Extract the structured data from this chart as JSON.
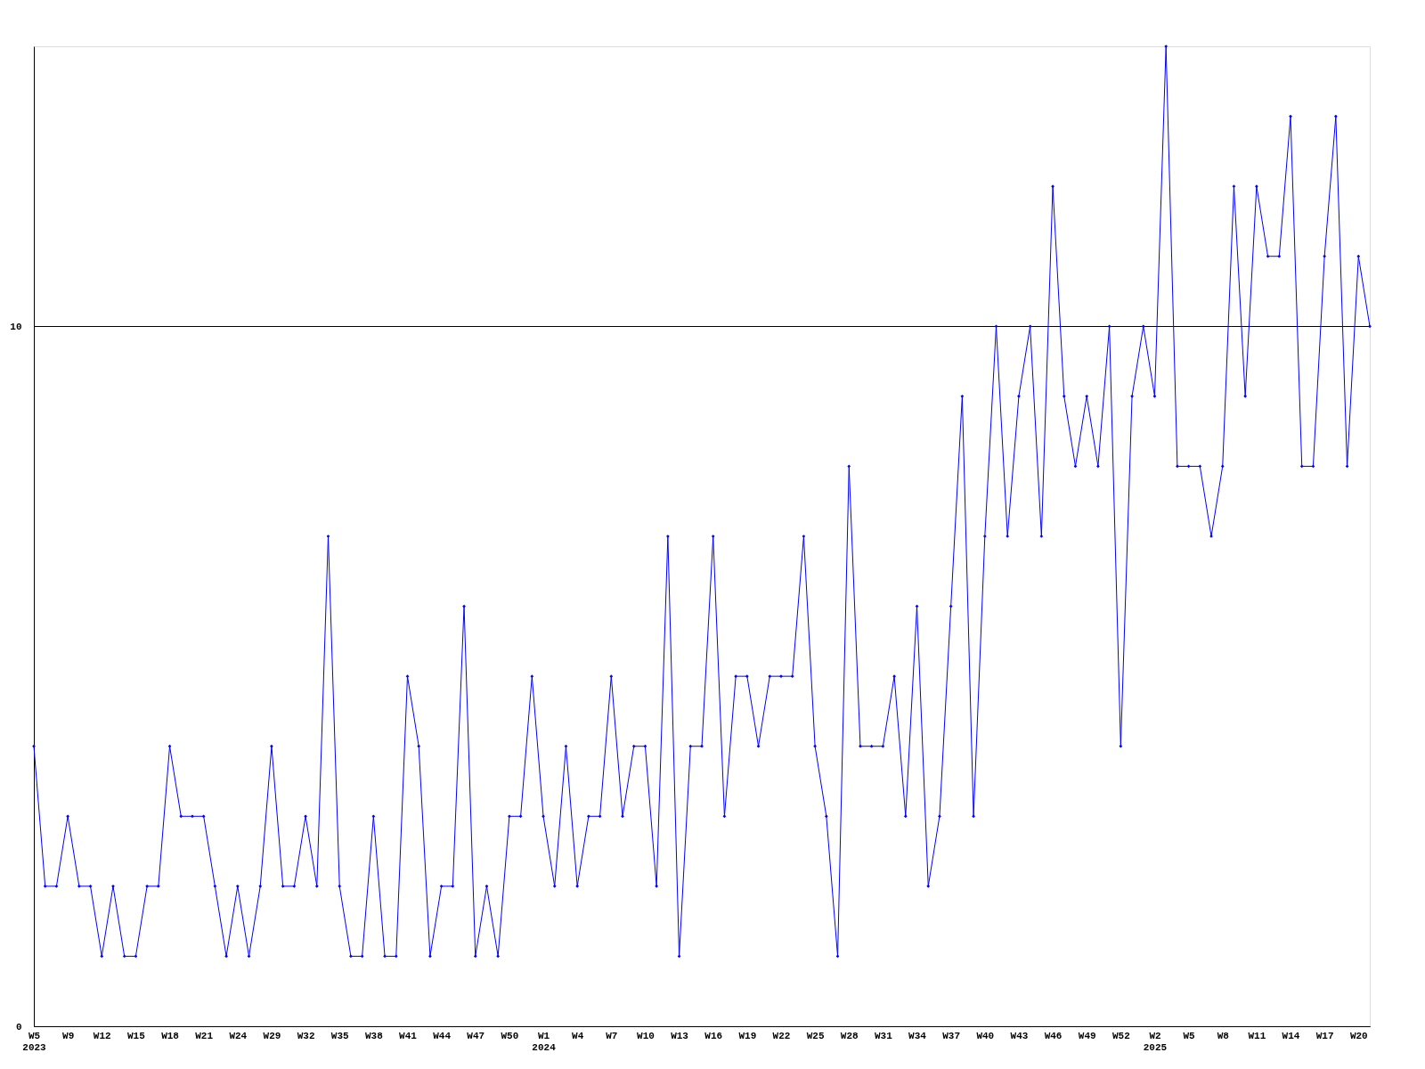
{
  "chart_data": {
    "type": "line",
    "categories": [
      "W5\n2023",
      null,
      null,
      "W9",
      null,
      null,
      "W12",
      null,
      null,
      "W15",
      null,
      null,
      "W18",
      null,
      null,
      "W21",
      null,
      null,
      "W24",
      null,
      null,
      "W29",
      null,
      null,
      "W32",
      null,
      null,
      "W35",
      null,
      null,
      "W38",
      null,
      null,
      "W41",
      null,
      null,
      "W44",
      null,
      null,
      "W47",
      null,
      null,
      "W50",
      null,
      null,
      "W1\n2024",
      null,
      null,
      "W4",
      null,
      null,
      "W7",
      null,
      null,
      "W10",
      null,
      null,
      "W13",
      null,
      null,
      "W16",
      null,
      null,
      "W19",
      null,
      null,
      "W22",
      null,
      null,
      "W25",
      null,
      null,
      "W28",
      null,
      null,
      "W31",
      null,
      null,
      "W34",
      null,
      null,
      "W37",
      null,
      null,
      "W40",
      null,
      null,
      "W43",
      null,
      null,
      "W46",
      null,
      null,
      "W49",
      null,
      null,
      "W52",
      null,
      null,
      "W2\n2025",
      null,
      null,
      "W5",
      null,
      null,
      "W8",
      null,
      null,
      "W11",
      null,
      null,
      "W14",
      null,
      null,
      "W17",
      null,
      null,
      "W20",
      null
    ],
    "series": [
      {
        "color": "#0000ff",
        "values": [
          4,
          2,
          2,
          3,
          2,
          2,
          1,
          2,
          1,
          1,
          2,
          2,
          4,
          3,
          3,
          3,
          2,
          1,
          2,
          1,
          2,
          4,
          2,
          2,
          3,
          2,
          7,
          2,
          1,
          1,
          3,
          1,
          1,
          5,
          4,
          1,
          2,
          2,
          6,
          1,
          2,
          1,
          3,
          3,
          5,
          3,
          2,
          4,
          2,
          3,
          3,
          5,
          3,
          4,
          4,
          2,
          7,
          1,
          4,
          4,
          7,
          3,
          5,
          5,
          4,
          5,
          5,
          5,
          7,
          4,
          3,
          1,
          8,
          4,
          4,
          4,
          5,
          3,
          6,
          2,
          3,
          6,
          9,
          3,
          7,
          10,
          7,
          9,
          10,
          7,
          12,
          9,
          8,
          9,
          8,
          10,
          4,
          9,
          10,
          9,
          14,
          8,
          8,
          8,
          7,
          8,
          12,
          9,
          12,
          11,
          11,
          13,
          8,
          8,
          11,
          13,
          8,
          11,
          10
        ]
      }
    ],
    "ylim": [
      0,
      14
    ],
    "yticks": [
      0,
      10
    ],
    "grid": "y",
    "marker": "diamond",
    "line_style": "solid"
  }
}
